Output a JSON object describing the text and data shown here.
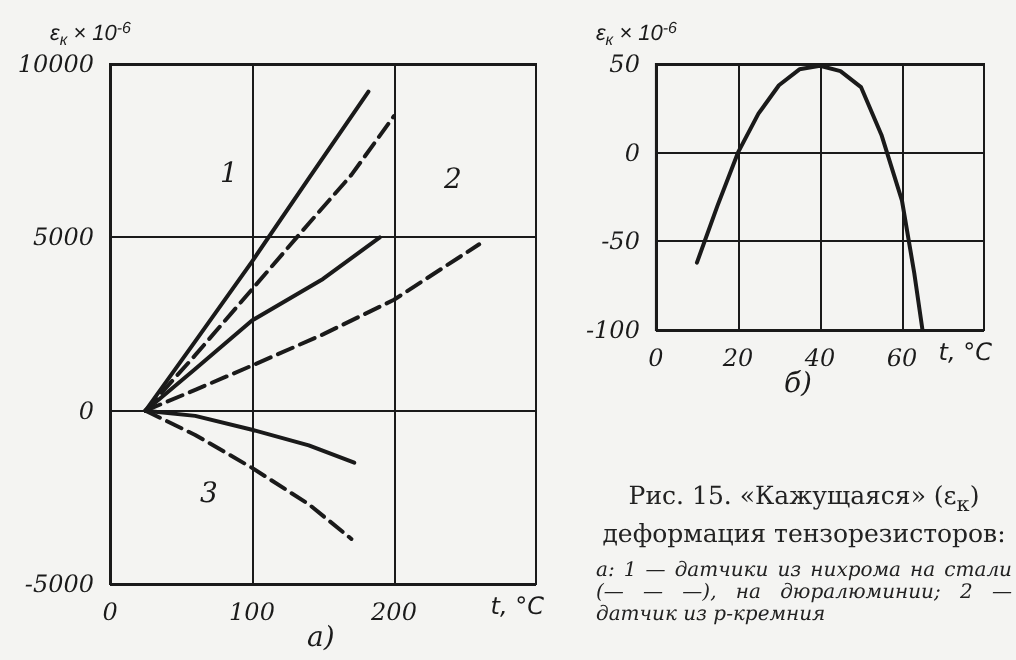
{
  "chart_data": [
    {
      "type": "line",
      "xlabel": "t, °C",
      "ylabel": "ε$_{к}$ × 10$^{-6}$",
      "xlim": [
        0,
        300
      ],
      "xticks": [
        0,
        100,
        200
      ],
      "ylim": [
        -5000,
        10000
      ],
      "yticks": [
        -5000,
        0,
        5000,
        10000
      ],
      "grid": true,
      "marker": "none",
      "series": [
        {
          "color": "#1a1a1a",
          "line_style": "solid",
          "x": [
            25,
            60,
            100,
            140,
            182
          ],
          "values": [
            0,
            2000,
            4300,
            6700,
            9200
          ]
        },
        {
          "color": "#1a1a1a",
          "line_style": "dashed",
          "x": [
            25,
            60,
            100,
            140,
            170,
            200
          ],
          "values": [
            0,
            1600,
            3500,
            5400,
            6800,
            8500
          ]
        },
        {
          "color": "#1a1a1a",
          "line_style": "solid",
          "x": [
            25,
            60,
            100,
            150,
            190
          ],
          "values": [
            0,
            1200,
            2600,
            3800,
            5000
          ]
        },
        {
          "color": "#1a1a1a",
          "line_style": "dashed",
          "x": [
            25,
            60,
            100,
            150,
            200,
            260
          ],
          "values": [
            0,
            600,
            1300,
            2200,
            3200,
            4800
          ]
        },
        {
          "color": "#1a1a1a",
          "line_style": "solid",
          "x": [
            25,
            60,
            100,
            140,
            172
          ],
          "values": [
            0,
            -150,
            -550,
            -1000,
            -1500
          ]
        },
        {
          "color": "#1a1a1a",
          "line_style": "dashed",
          "x": [
            25,
            60,
            100,
            140,
            170
          ],
          "values": [
            0,
            -700,
            -1650,
            -2700,
            -3700
          ]
        }
      ],
      "annotations": [
        "а)",
        "1",
        "2",
        "3"
      ]
    },
    {
      "type": "line",
      "xlabel": "t, °C",
      "ylabel": "ε$_{к}$ × 10$^{-6}$",
      "xlim": [
        0,
        80
      ],
      "xticks": [
        0,
        20,
        40,
        60
      ],
      "ylim": [
        -100,
        50
      ],
      "yticks": [
        -100,
        -50,
        0,
        50
      ],
      "grid": true,
      "marker": "none",
      "series": [
        {
          "color": "#1a1a1a",
          "line_style": "solid",
          "x": [
            10,
            15,
            20,
            25,
            30,
            35,
            40,
            45,
            50,
            55,
            60,
            63,
            65
          ],
          "values": [
            -62,
            -30,
            0,
            22,
            38,
            47,
            49,
            46,
            37,
            10,
            -27,
            -68,
            -100
          ]
        }
      ],
      "annotations": [
        "б)",
        "Рис. 15. «Кажущаяся» (ε$_{к}$) деформация тензорезисторов:",
        "а: 1 — датчики из нихрома на стали (— — —), на дюралюминии; 2 — датчик из p-кремния"
      ]
    }
  ]
}
